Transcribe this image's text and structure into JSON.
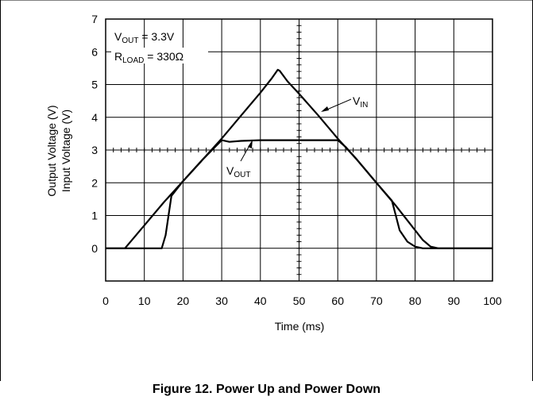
{
  "figure": {
    "caption": "Figure 12. Power Up and Power Down"
  },
  "chart_data": {
    "type": "line",
    "xlabel": "Time (ms)",
    "ylabel_lines": [
      "Output Voltage (V)",
      "Input Voltage (V)"
    ],
    "xlim": [
      0,
      100
    ],
    "ylim": [
      -1,
      7
    ],
    "xticks": [
      0,
      10,
      20,
      30,
      40,
      50,
      60,
      70,
      80,
      90,
      100
    ],
    "yticks": [
      0,
      1,
      2,
      3,
      4,
      5,
      6,
      7
    ],
    "grid": true,
    "conditions": {
      "vout": {
        "main": "V",
        "sub": "OUT",
        "rest": " = 3.3V"
      },
      "rload": {
        "main": "R",
        "sub": "LOAD",
        "rest": " = 330Ω"
      }
    },
    "series": [
      {
        "name": "V_IN",
        "label_main": "V",
        "label_sub": "IN",
        "x": [
          0,
          5,
          10,
          15,
          20,
          25,
          30,
          35,
          40,
          43,
          44.5,
          45,
          47,
          50,
          55,
          60,
          65,
          70,
          75,
          78,
          80,
          82,
          84,
          86,
          90,
          100
        ],
        "y": [
          0,
          0,
          0.7,
          1.4,
          2.05,
          2.7,
          3.35,
          4.05,
          4.75,
          5.2,
          5.45,
          5.42,
          5.1,
          4.72,
          4.05,
          3.35,
          2.7,
          2.0,
          1.3,
          0.85,
          0.55,
          0.25,
          0.05,
          0,
          0,
          0
        ]
      },
      {
        "name": "V_OUT",
        "label_main": "V",
        "label_sub": "OUT",
        "x": [
          0,
          14.5,
          15.5,
          17,
          20,
          25,
          30,
          32,
          35,
          40,
          50,
          60,
          62,
          65,
          70,
          74,
          75,
          76,
          78,
          80,
          82,
          85,
          88,
          100
        ],
        "y": [
          0,
          0,
          0.4,
          1.6,
          2.05,
          2.7,
          3.3,
          3.25,
          3.28,
          3.3,
          3.3,
          3.3,
          3.1,
          2.7,
          2.0,
          1.45,
          1.0,
          0.55,
          0.2,
          0.05,
          0,
          0,
          0,
          0
        ]
      }
    ]
  }
}
